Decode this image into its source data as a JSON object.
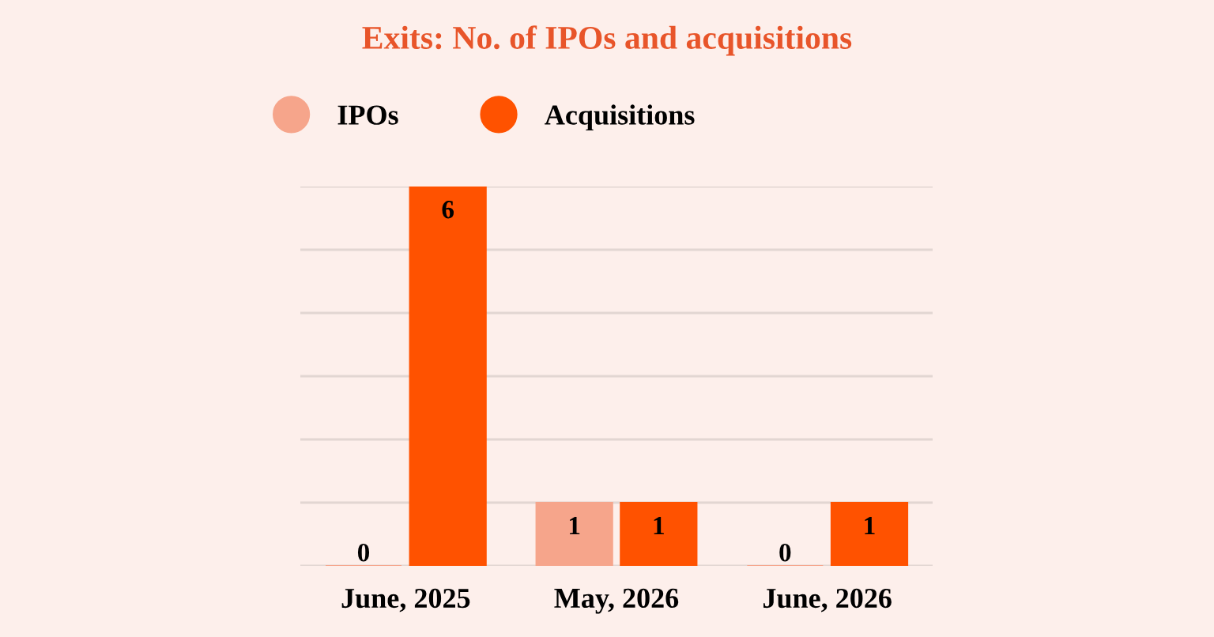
{
  "chart_data": {
    "type": "bar",
    "title": "Exits: No. of IPOs and acquisitions",
    "categories": [
      "June, 2025",
      "May, 2026",
      "June, 2026"
    ],
    "series": [
      {
        "name": "IPOs",
        "color": "#f6a58b",
        "values": [
          0,
          1,
          0
        ]
      },
      {
        "name": "Acquisitions",
        "color": "#ff5200",
        "values": [
          6,
          1,
          1
        ]
      }
    ],
    "ylim": [
      0,
      6
    ],
    "yticks": [
      {
        "value": 0,
        "label": null
      },
      {
        "value": 1,
        "label": null
      },
      {
        "value": 2,
        "label": null
      },
      {
        "value": 3,
        "label": null
      },
      {
        "value": 4,
        "label": null
      },
      {
        "value": 5,
        "label": null
      },
      {
        "value": 6,
        "label": null
      }
    ],
    "tick_labels": "x",
    "grid": "y",
    "legend": "top left",
    "data_labels": true
  }
}
